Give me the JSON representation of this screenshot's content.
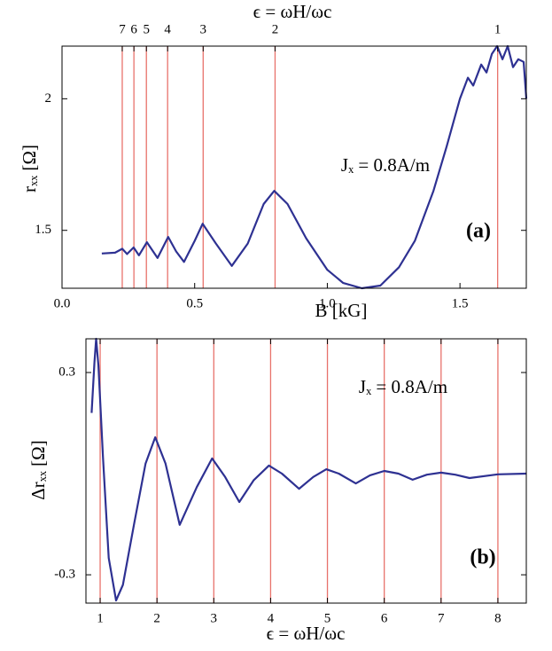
{
  "chart_data": [
    {
      "type": "line",
      "top_axis_label": "ϵ = ωH/ωc",
      "x_label": "B [kG]",
      "y_label": "rₓₓ [Ω]",
      "annotation": "Jₓ = 0.8A/m",
      "panel_label": "(a)",
      "xlim": [
        0,
        1.75
      ],
      "ylim": [
        1.28,
        2.2
      ],
      "xticks": [
        {
          "value": 0,
          "label": "0.0"
        },
        0.5,
        {
          "value": 1,
          "label": "1.0"
        },
        1.5
      ],
      "yticks": [
        1.5,
        2
      ],
      "top_ticks": [
        {
          "value": 0.227,
          "label": "7"
        },
        {
          "value": 0.271,
          "label": "6"
        },
        {
          "value": 0.318,
          "label": "5"
        },
        {
          "value": 0.398,
          "label": "4"
        },
        {
          "value": 0.532,
          "label": "3"
        },
        {
          "value": 0.803,
          "label": "2"
        },
        {
          "value": 1.642,
          "label": "1"
        }
      ],
      "vline_color": "#e8726b",
      "series": [
        {
          "color": "#2e3192",
          "x": [
            0.15,
            0.2,
            0.227,
            0.245,
            0.27,
            0.29,
            0.32,
            0.36,
            0.4,
            0.43,
            0.46,
            0.5,
            0.53,
            0.58,
            0.64,
            0.7,
            0.76,
            0.8,
            0.85,
            0.92,
            1.0,
            1.06,
            1.13,
            1.2,
            1.27,
            1.33,
            1.4,
            1.45,
            1.5,
            1.53,
            1.55,
            1.58,
            1.6,
            1.62,
            1.64,
            1.66,
            1.68,
            1.7,
            1.72,
            1.74,
            1.75
          ],
          "values": [
            1.412,
            1.415,
            1.43,
            1.41,
            1.435,
            1.405,
            1.455,
            1.395,
            1.475,
            1.42,
            1.38,
            1.46,
            1.525,
            1.45,
            1.365,
            1.45,
            1.6,
            1.65,
            1.6,
            1.47,
            1.35,
            1.3,
            1.28,
            1.29,
            1.36,
            1.46,
            1.65,
            1.82,
            2.0,
            2.08,
            2.05,
            2.13,
            2.1,
            2.17,
            2.2,
            2.15,
            2.2,
            2.12,
            2.15,
            2.14,
            2.0
          ]
        }
      ]
    },
    {
      "type": "line",
      "x_label": "ϵ = ωH/ωc",
      "y_label": "Δrₓₓ [Ω]",
      "annotation": "Jₓ = 0.8A/m",
      "panel_label": "(b)",
      "xlim": [
        0.75,
        8.5
      ],
      "ylim": [
        -0.384,
        0.4
      ],
      "xticks": [
        1,
        2,
        3,
        4,
        5,
        6,
        7,
        8
      ],
      "yticks": [
        -0.3,
        0.3
      ],
      "vline_color": "#e8726b",
      "series": [
        {
          "color": "#2e3192",
          "x": [
            0.85,
            0.9,
            0.93,
            0.97,
            1.05,
            1.15,
            1.28,
            1.4,
            1.6,
            1.8,
            1.97,
            2.15,
            2.4,
            2.7,
            2.97,
            3.2,
            3.45,
            3.7,
            3.97,
            4.2,
            4.5,
            4.75,
            4.98,
            5.2,
            5.5,
            5.75,
            6,
            6.25,
            6.5,
            6.75,
            7,
            7.25,
            7.5,
            8,
            8.5
          ],
          "values": [
            0.18,
            0.33,
            0.4,
            0.32,
            0.05,
            -0.25,
            -0.376,
            -0.33,
            -0.147,
            0.03,
            0.108,
            0.03,
            -0.152,
            -0.04,
            0.045,
            -0.01,
            -0.084,
            -0.02,
            0.024,
            0,
            -0.045,
            -0.01,
            0.013,
            0,
            -0.029,
            -0.005,
            0.008,
            0,
            -0.018,
            -0.003,
            0.003,
            -0.003,
            -0.013,
            -0.002,
            0
          ]
        }
      ]
    }
  ]
}
